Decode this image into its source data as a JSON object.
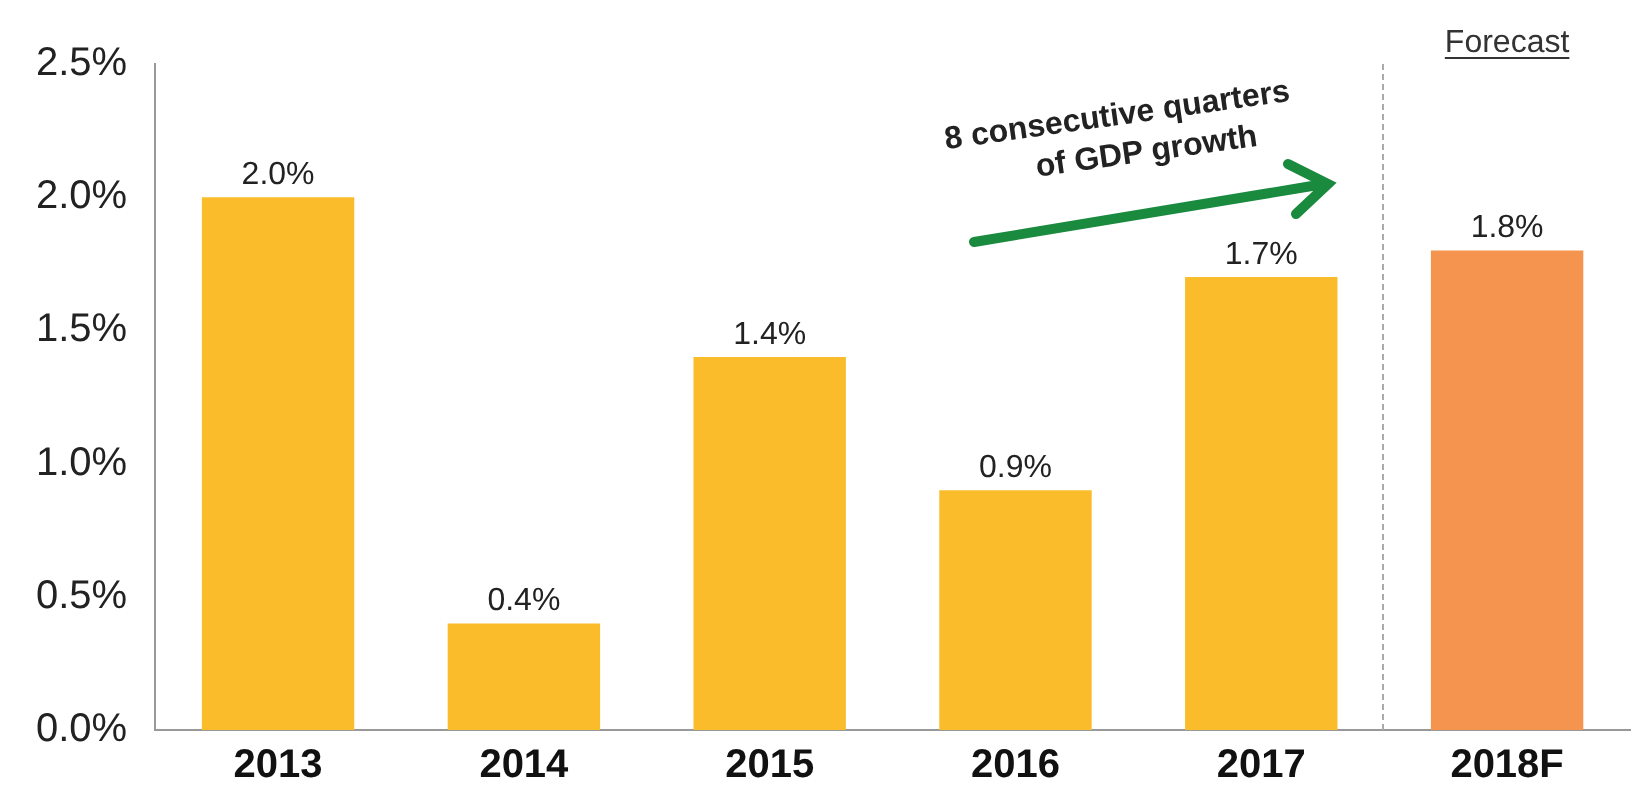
{
  "chart_data": {
    "type": "bar",
    "categories": [
      "2013",
      "2014",
      "2015",
      "2016",
      "2017",
      "2018F"
    ],
    "values": [
      2.0,
      0.4,
      1.4,
      0.9,
      1.7,
      1.8
    ],
    "colors": [
      "#fbbc2b",
      "#fbbc2b",
      "#fbbc2b",
      "#fbbc2b",
      "#fbbc2b",
      "#f5944f"
    ],
    "value_labels": [
      "2.0%",
      "0.4%",
      "1.4%",
      "0.9%",
      "1.7%",
      "1.8%"
    ],
    "ylim": [
      0,
      2.5
    ],
    "yticks": [
      {
        "value": 0,
        "label": "0.0%"
      },
      {
        "value": 0.5,
        "label": "0.5%"
      },
      {
        "value": 1.0,
        "label": "1.0%"
      },
      {
        "value": 1.5,
        "label": "1.5%"
      },
      {
        "value": 2.0,
        "label": "2.0%"
      },
      {
        "value": 2.5,
        "label": "2.5%"
      }
    ],
    "annotations": [
      "8 consecutive quarters\nof GDP growth",
      "Forecast"
    ],
    "grid": false,
    "legend": false
  }
}
